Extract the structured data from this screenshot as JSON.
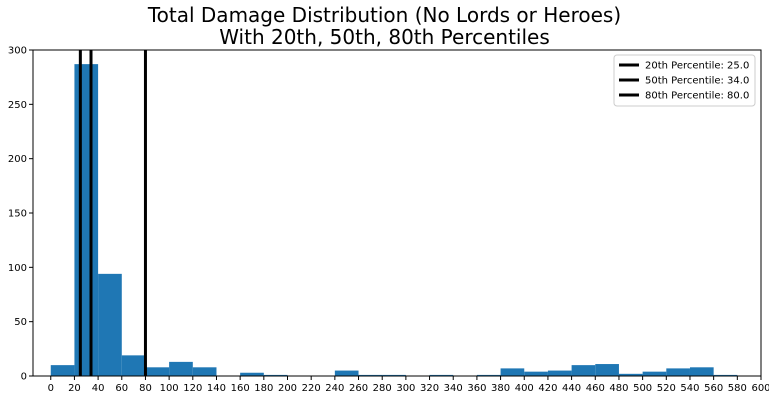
{
  "chart_data": {
    "type": "bar",
    "title": "Total Damage Distribution (No Lords or Heroes)",
    "subtitle": "With 20th, 50th, 80th Percentiles",
    "xlabel": "",
    "ylabel": "",
    "xlim": [
      -15,
      600
    ],
    "ylim": [
      0,
      300
    ],
    "x_ticks": [
      "0",
      "20",
      "40",
      "60",
      "80",
      "100",
      "120",
      "140",
      "160",
      "180",
      "200",
      "220",
      "240",
      "260",
      "280",
      "300",
      "320",
      "340",
      "360",
      "380",
      "400",
      "420",
      "440",
      "460",
      "480",
      "500",
      "520",
      "540",
      "560",
      "580",
      "600"
    ],
    "y_ticks": [
      "0",
      "50",
      "100",
      "150",
      "200",
      "250",
      "300"
    ],
    "bin_width": 20,
    "bins": [
      {
        "start": 0,
        "count": 10
      },
      {
        "start": 20,
        "count": 287
      },
      {
        "start": 40,
        "count": 94
      },
      {
        "start": 60,
        "count": 19
      },
      {
        "start": 80,
        "count": 8
      },
      {
        "start": 100,
        "count": 13
      },
      {
        "start": 120,
        "count": 8
      },
      {
        "start": 140,
        "count": 0
      },
      {
        "start": 160,
        "count": 3
      },
      {
        "start": 180,
        "count": 1
      },
      {
        "start": 200,
        "count": 0
      },
      {
        "start": 220,
        "count": 0
      },
      {
        "start": 240,
        "count": 5
      },
      {
        "start": 260,
        "count": 1
      },
      {
        "start": 280,
        "count": 1
      },
      {
        "start": 300,
        "count": 0
      },
      {
        "start": 320,
        "count": 1
      },
      {
        "start": 340,
        "count": 0
      },
      {
        "start": 360,
        "count": 1
      },
      {
        "start": 380,
        "count": 7
      },
      {
        "start": 400,
        "count": 4
      },
      {
        "start": 420,
        "count": 5
      },
      {
        "start": 440,
        "count": 10
      },
      {
        "start": 460,
        "count": 11
      },
      {
        "start": 480,
        "count": 2
      },
      {
        "start": 500,
        "count": 4
      },
      {
        "start": 520,
        "count": 7
      },
      {
        "start": 540,
        "count": 8
      },
      {
        "start": 560,
        "count": 1
      }
    ],
    "bar_color": "#1f77b4",
    "percentile_lines": [
      {
        "label": "20th Percentile: 25.0",
        "x": 25.0,
        "color": "#000000"
      },
      {
        "label": "50th Percentile: 34.0",
        "x": 34.0,
        "color": "#000000"
      },
      {
        "label": "80th Percentile: 80.0",
        "x": 80.0,
        "color": "#000000"
      }
    ],
    "legend_position": "top-right",
    "grid": false
  }
}
